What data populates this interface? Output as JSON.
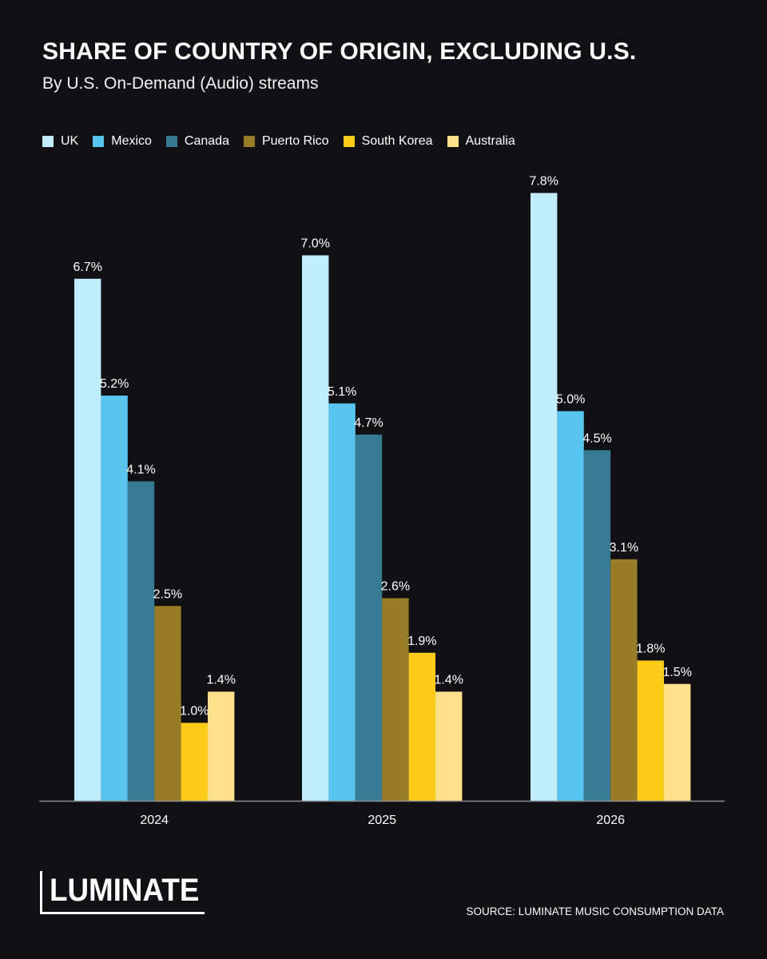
{
  "chart_data": {
    "type": "bar",
    "title": "SHARE OF COUNTRY OF ORIGIN, EXCLUDING U.S.",
    "subtitle": "By U.S. On-Demand (Audio) streams",
    "categories": [
      "2024",
      "2025",
      "2026"
    ],
    "series": [
      {
        "name": "UK",
        "color": "#c1ecfb",
        "values": [
          6.7,
          7.0,
          7.8
        ],
        "labels": [
          "6.7%",
          "7.0%",
          "7.8%"
        ]
      },
      {
        "name": "Mexico",
        "color": "#58c5ee",
        "values": [
          5.2,
          5.1,
          5.0
        ],
        "labels": [
          "5.2%",
          "5.1%",
          "5.0%"
        ]
      },
      {
        "name": "Canada",
        "color": "#397a93",
        "values": [
          4.1,
          4.7,
          4.5
        ],
        "labels": [
          "4.1%",
          "4.7%",
          "4.5%"
        ]
      },
      {
        "name": "Puerto Rico",
        "color": "#987c27",
        "values": [
          2.5,
          2.6,
          3.1
        ],
        "labels": [
          "2.5%",
          "2.6%",
          "3.1%"
        ]
      },
      {
        "name": "South Korea",
        "color": "#fecb19",
        "values": [
          1.0,
          1.9,
          1.8
        ],
        "labels": [
          "1.0%",
          "1.9%",
          "1.8%"
        ]
      },
      {
        "name": "Australia",
        "color": "#fee08a",
        "values": [
          1.4,
          1.4,
          1.5
        ],
        "labels": [
          "1.4%",
          "1.4%",
          "1.5%"
        ]
      }
    ],
    "legend_position": "top-left",
    "grid": false,
    "ylim": [
      0,
      8
    ]
  },
  "branding": {
    "logo_text": "LUMINATE",
    "source": "SOURCE: LUMINATE MUSIC CONSUMPTION DATA"
  }
}
